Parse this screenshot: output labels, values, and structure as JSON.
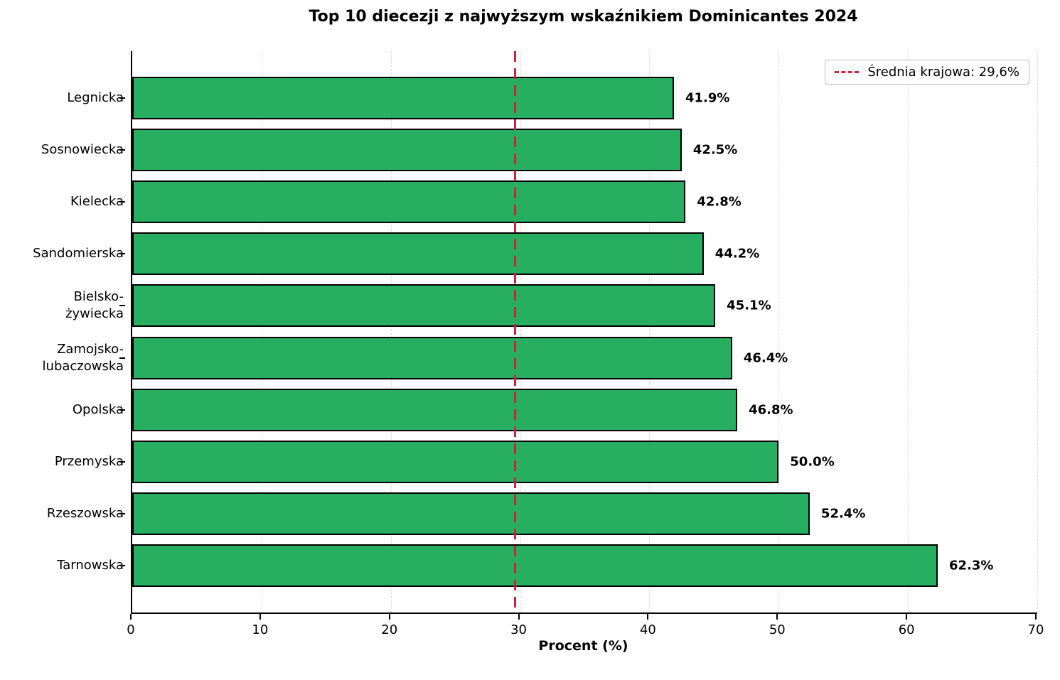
{
  "chart_data": {
    "type": "bar",
    "orientation": "horizontal",
    "title": "Top 10 diecezji z najwyższym wskaźnikiem Dominicantes 2024",
    "xlabel": "Procent (%)",
    "xlim": [
      0,
      70
    ],
    "xticks": [
      0,
      10,
      20,
      30,
      40,
      50,
      60,
      70
    ],
    "grid": true,
    "grid_style": "dashed-vertical",
    "bar_color": "#27ae60",
    "bar_edge_color": "#000000",
    "categories": [
      "Legnicka",
      "Sosnowiecka",
      "Kielecka",
      "Sandomierska",
      "Bielsko-żywiecka",
      "Zamojsko-lubaczowska",
      "Opolska",
      "Przemyska",
      "Rzeszowska",
      "Tarnowska"
    ],
    "category_display": [
      [
        "Legnicka"
      ],
      [
        "Sosnowiecka"
      ],
      [
        "Kielecka"
      ],
      [
        "Sandomierska"
      ],
      [
        "Bielsko-",
        "żywiecka"
      ],
      [
        "Zamojsko-",
        "lubaczowska"
      ],
      [
        "Opolska"
      ],
      [
        "Przemyska"
      ],
      [
        "Rzeszowska"
      ],
      [
        "Tarnowska"
      ]
    ],
    "values": [
      41.9,
      42.5,
      42.8,
      44.2,
      45.1,
      46.4,
      46.8,
      50.0,
      52.4,
      62.3
    ],
    "value_labels": [
      "41.9%",
      "42.5%",
      "42.8%",
      "44.2%",
      "45.1%",
      "46.4%",
      "46.8%",
      "50.0%",
      "52.4%",
      "62.3%"
    ],
    "reference_line": {
      "value": 29.6,
      "color": "#d21f3c",
      "style": "dashed",
      "legend_label": "Średnia krajowa: 29,6%"
    },
    "legend_position": "upper right"
  }
}
